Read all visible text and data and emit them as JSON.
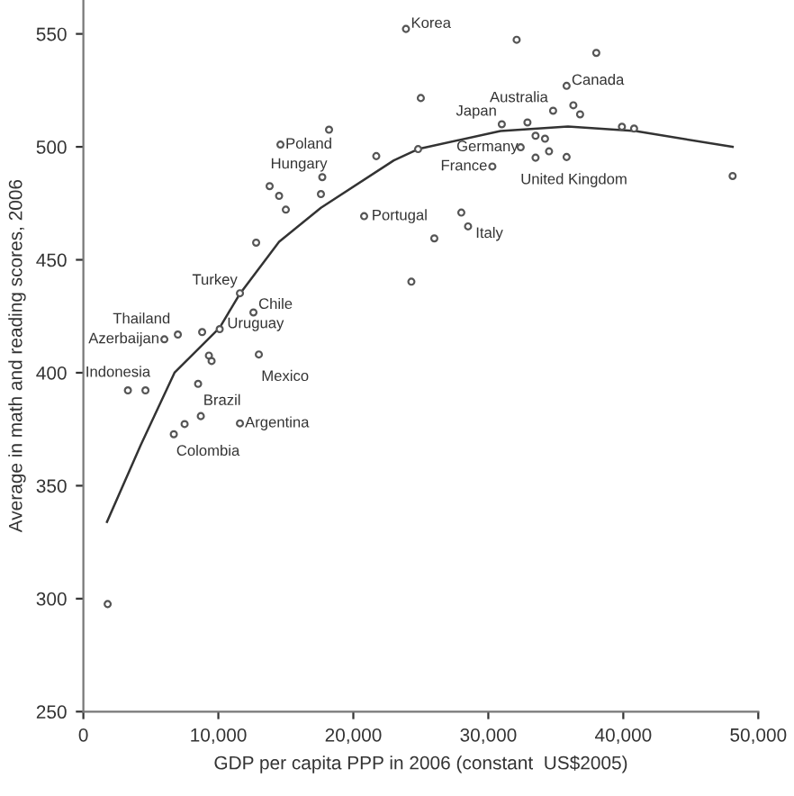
{
  "chart_data": {
    "type": "scatter",
    "xlabel": "GDP per capita PPP in 2006 (constant  US$2005)",
    "ylabel": "Average in math and reading scores, 2006",
    "xlim": [
      0,
      50000
    ],
    "ylim": [
      250,
      565
    ],
    "xticks": [
      {
        "value": 0,
        "label": "0"
      },
      {
        "value": 10000,
        "label": "10,000"
      },
      {
        "value": 20000,
        "label": "20,000"
      },
      {
        "value": 30000,
        "label": "30,000"
      },
      {
        "value": 40000,
        "label": "40,000"
      },
      {
        "value": 50000,
        "label": "50,000"
      }
    ],
    "yticks": [
      250,
      300,
      350,
      400,
      450,
      500,
      550
    ],
    "grid": false,
    "legend": false,
    "marker": "circle",
    "series": [
      {
        "color": "#555555",
        "x": [
          23900,
          35800,
          34800,
          31000,
          14600,
          17700,
          32400,
          30300,
          33500,
          20800,
          28500,
          11600,
          12600,
          10100,
          7000,
          6000,
          3300,
          13000,
          8700,
          11600,
          6700,
          18200,
          21700,
          13800,
          14500,
          15000,
          17600,
          12800,
          8800,
          9300,
          9500,
          4600,
          8500,
          7500,
          1800,
          32100,
          38000,
          25000,
          36300,
          36800,
          32900,
          39900,
          40800,
          24800,
          33500,
          34200,
          34500,
          35800,
          48100,
          28000,
          26000,
          24300
        ],
        "values": [
          552.2,
          527,
          516,
          510,
          501,
          486.6,
          499.8,
          491.3,
          495.2,
          469.3,
          464.8,
          435.2,
          426.7,
          419.3,
          416.9,
          414.8,
          392.2,
          408.1,
          380.8,
          377.6,
          372.8,
          507.6,
          495.9,
          482.6,
          478.3,
          472.2,
          479.1,
          457.6,
          418,
          407.6,
          405.2,
          392.2,
          395.1,
          377.3,
          297.6,
          547.4,
          541.6,
          521.6,
          518.4,
          514.4,
          510.8,
          508.9,
          508.1,
          499,
          504.9,
          503.6,
          498,
          495.5,
          487.1,
          470.9,
          459.5,
          440.3
        ]
      },
      {
        "type": "line",
        "color": "#333333",
        "marker": "none",
        "x": [
          1750,
          4250,
          6750,
          10100,
          11600,
          14500,
          17600,
          23000,
          24800,
          30900,
          35900,
          40900,
          48100
        ],
        "values": [
          334,
          368,
          400,
          420,
          435,
          458,
          473,
          494,
          499,
          507,
          509,
          507,
          500
        ]
      }
    ],
    "annotations": [
      {
        "text": "Korea",
        "x": 23900,
        "y": 552.2
      },
      {
        "text": "Canada",
        "x": 35800,
        "y": 527
      },
      {
        "text": "Australia",
        "x": 34800,
        "y": 516
      },
      {
        "text": "Japan",
        "x": 31000,
        "y": 510
      },
      {
        "text": "Poland",
        "x": 14600,
        "y": 501
      },
      {
        "text": "Hungary",
        "x": 17700,
        "y": 486.6
      },
      {
        "text": "Germany",
        "x": 32400,
        "y": 499.8
      },
      {
        "text": "France",
        "x": 30300,
        "y": 491.3
      },
      {
        "text": "United Kingdom",
        "x": 33500,
        "y": 495.2
      },
      {
        "text": "Portugal",
        "x": 20800,
        "y": 469.3
      },
      {
        "text": "Italy",
        "x": 28500,
        "y": 464.8
      },
      {
        "text": "Turkey",
        "x": 11600,
        "y": 435.2
      },
      {
        "text": "Chile",
        "x": 12600,
        "y": 426.7
      },
      {
        "text": "Uruguay",
        "x": 10100,
        "y": 419.3
      },
      {
        "text": "Thailand",
        "x": 7000,
        "y": 416.9
      },
      {
        "text": "Azerbaijan",
        "x": 6000,
        "y": 414.8
      },
      {
        "text": "Indonesia",
        "x": 3300,
        "y": 392.2
      },
      {
        "text": "Mexico",
        "x": 13000,
        "y": 408.1
      },
      {
        "text": "Brazil",
        "x": 8700,
        "y": 380.8
      },
      {
        "text": "Argentina",
        "x": 11600,
        "y": 377.6
      },
      {
        "text": "Colombia",
        "x": 6700,
        "y": 372.8
      }
    ]
  }
}
